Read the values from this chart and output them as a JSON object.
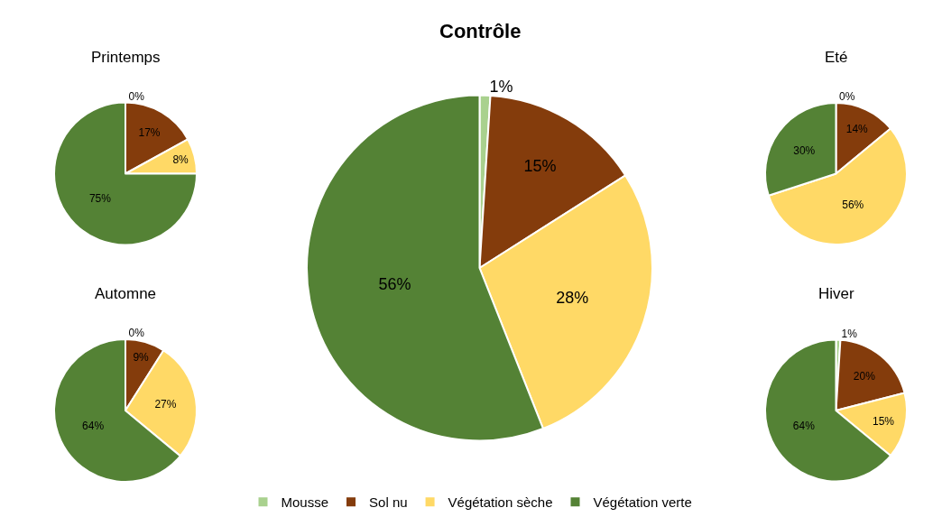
{
  "chart_data": {
    "type": "pie",
    "categories": [
      "Mousse",
      "Sol nu",
      "Végétation sèche",
      "Végétation verte"
    ],
    "colors": [
      "#a9d18e",
      "#843c0c",
      "#ffd966",
      "#548235"
    ],
    "legend": "bottom",
    "series": [
      {
        "name": "Printemps",
        "values": [
          0,
          17,
          8,
          75
        ],
        "value_labels": [
          "0%",
          "17%",
          "8%",
          "75%"
        ]
      },
      {
        "name": "Automne",
        "values": [
          0,
          9,
          27,
          64
        ],
        "value_labels": [
          "0%",
          "9%",
          "27%",
          "64%"
        ]
      },
      {
        "name": "Contrôle",
        "values": [
          1,
          15,
          28,
          56
        ],
        "value_labels": [
          "1%",
          "15%",
          "28%",
          "56%"
        ]
      },
      {
        "name": "Eté",
        "values": [
          0,
          14,
          56,
          30
        ],
        "value_labels": [
          "0%",
          "14%",
          "56%",
          "30%"
        ]
      },
      {
        "name": "Hiver",
        "values": [
          1,
          20,
          15,
          64
        ],
        "value_labels": [
          "1%",
          "20%",
          "15%",
          "64%"
        ]
      }
    ]
  }
}
